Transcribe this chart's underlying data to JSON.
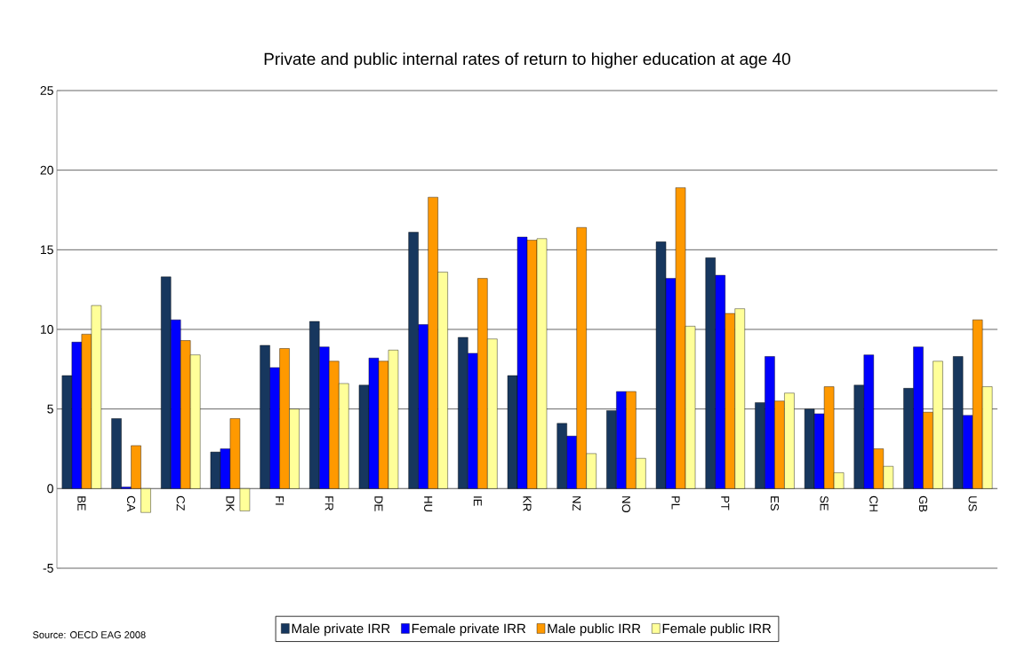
{
  "chart_data": {
    "type": "bar",
    "title": "Private and public internal rates of return to higher education at age 40",
    "categories": [
      "BE",
      "CA",
      "CZ",
      "DK",
      "FI",
      "FR",
      "DE",
      "HU",
      "IE",
      "KR",
      "NZ",
      "NO",
      "PL",
      "PT",
      "ES",
      "SE",
      "CH",
      "GB",
      "US"
    ],
    "series": [
      {
        "name": "Male private IRR",
        "color": "#17375e",
        "values": [
          7.1,
          4.4,
          13.3,
          2.3,
          9.0,
          10.5,
          6.5,
          16.1,
          9.5,
          7.1,
          4.1,
          4.9,
          15.5,
          14.5,
          5.4,
          5.0,
          6.5,
          6.3,
          8.3
        ]
      },
      {
        "name": "Female private IRR",
        "color": "#0000ff",
        "values": [
          9.2,
          0.1,
          10.6,
          2.5,
          7.6,
          8.9,
          8.2,
          10.3,
          8.5,
          15.8,
          3.3,
          6.1,
          13.2,
          13.4,
          8.3,
          4.7,
          8.4,
          8.9,
          4.6
        ]
      },
      {
        "name": "Male public IRR",
        "color": "#ff9900",
        "values": [
          9.7,
          2.7,
          9.3,
          4.4,
          8.8,
          8.0,
          8.0,
          18.3,
          13.2,
          15.6,
          16.4,
          6.1,
          18.9,
          11.0,
          5.5,
          6.4,
          2.5,
          4.8,
          10.6
        ]
      },
      {
        "name": "Female public IRR",
        "color": "#ffff99",
        "values": [
          11.5,
          -1.5,
          8.4,
          -1.4,
          5.0,
          6.6,
          8.7,
          13.6,
          9.4,
          15.7,
          2.2,
          1.9,
          10.2,
          11.3,
          6.0,
          1.0,
          1.4,
          8.0,
          6.4
        ]
      }
    ],
    "ylim": [
      -5,
      25
    ],
    "yticks": [
      -5,
      0,
      5,
      10,
      15,
      20,
      25
    ],
    "grid": "y",
    "legend": "bottom",
    "annotations": [
      "Source: OECD EAG 2008"
    ]
  }
}
